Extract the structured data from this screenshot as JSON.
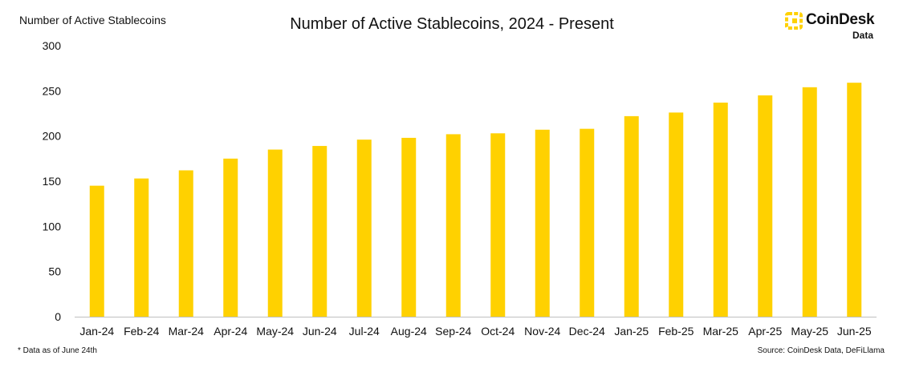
{
  "header": {
    "ylabel_text": "Number of Active Stablecoins",
    "title": "Number of Active Stablecoins, 2024 - Present",
    "logo_name": "CoinDesk",
    "logo_sub": "Data"
  },
  "footer": {
    "note": "* Data as of June 24th",
    "source": "Source: CoinDesk Data, DeFiLlama"
  },
  "colors": {
    "bar": "#FFD100",
    "axis": "#bfbfbf",
    "text": "#111111"
  },
  "chart_data": {
    "type": "bar",
    "title": "Number of Active Stablecoins, 2024 - Present",
    "ylabel": "Number of Active Stablecoins",
    "xlabel": "",
    "categories": [
      "Jan-24",
      "Feb-24",
      "Mar-24",
      "Apr-24",
      "May-24",
      "Jun-24",
      "Jul-24",
      "Aug-24",
      "Sep-24",
      "Oct-24",
      "Nov-24",
      "Dec-24",
      "Jan-25",
      "Feb-25",
      "Mar-25",
      "Apr-25",
      "May-25",
      "Jun-25"
    ],
    "values": [
      145,
      153,
      162,
      175,
      185,
      189,
      196,
      198,
      202,
      203,
      207,
      208,
      222,
      226,
      237,
      245,
      254,
      259
    ],
    "ylim": [
      0,
      300
    ],
    "yticks": [
      0,
      50,
      100,
      150,
      200,
      250,
      300
    ],
    "grid": false,
    "legend": "none"
  }
}
